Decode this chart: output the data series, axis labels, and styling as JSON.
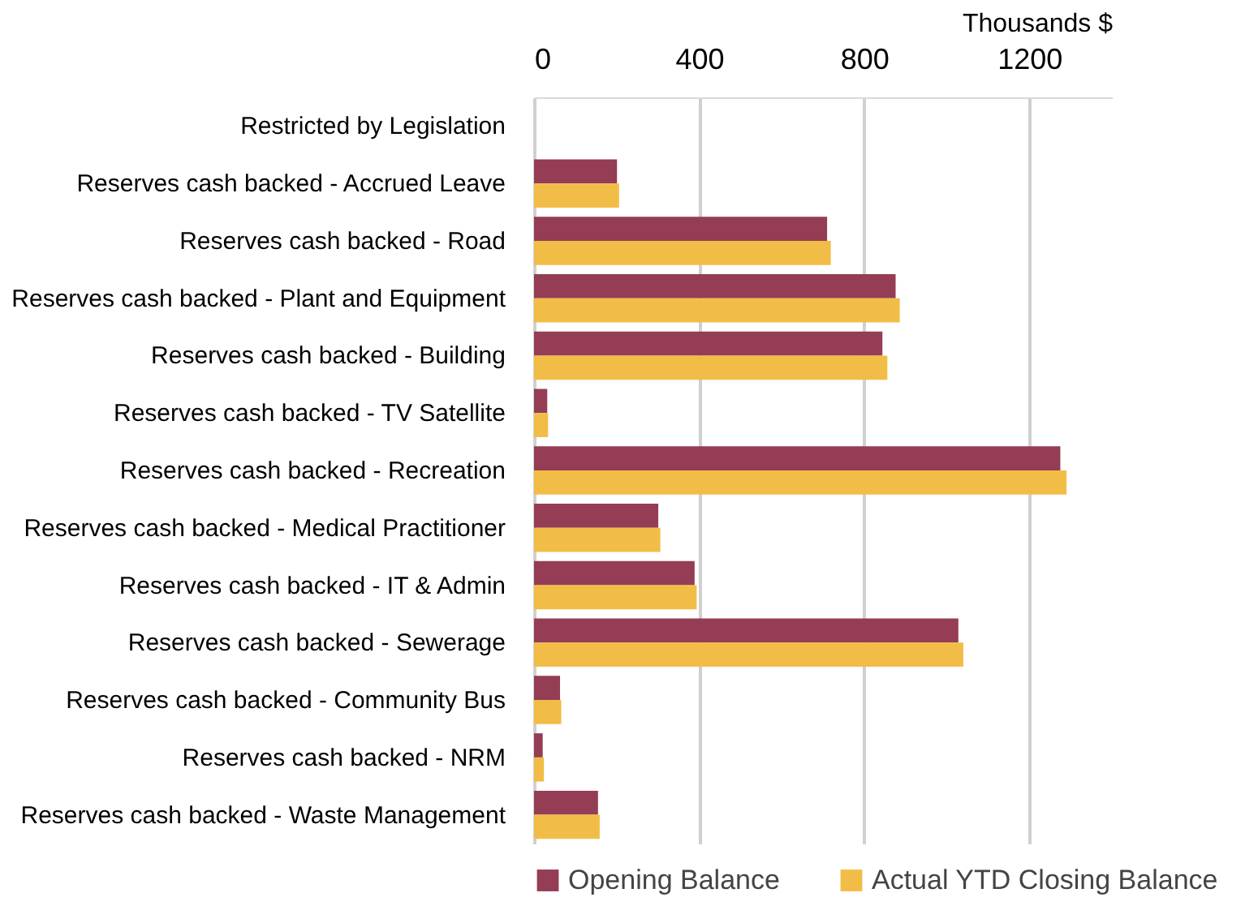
{
  "chart_data": {
    "type": "bar",
    "orientation": "horizontal",
    "xlabel": "Thousands $",
    "categories": [
      "Restricted by Legislation",
      "Reserves cash backed - Accrued Leave",
      "Reserves cash backed - Road",
      "Reserves cash backed - Plant and Equipment",
      "Reserves cash backed - Building",
      "Reserves cash backed - TV Satellite",
      "Reserves cash backed - Recreation",
      "Reserves cash backed - Medical Practitioner",
      "Reserves cash backed - IT & Admin",
      "Reserves cash backed - Sewerage",
      "Reserves cash backed - Community Bus",
      "Reserves cash backed - NRM",
      "Reserves cash backed - Waste Management"
    ],
    "series": [
      {
        "name": "Opening  Balance",
        "color": "#943d54",
        "values": [
          0,
          201,
          710,
          876,
          844,
          32,
          1275,
          301,
          389,
          1028,
          63,
          21,
          155
        ]
      },
      {
        "name": "Actual YTD Closing Balance",
        "color": "#f2bd47",
        "values": [
          0,
          206,
          719,
          886,
          856,
          34,
          1290,
          306,
          394,
          1040,
          66,
          24,
          159
        ]
      }
    ],
    "xlim": [
      0,
      1400
    ],
    "xticks": [
      0,
      400,
      800,
      1200
    ],
    "grid": "x",
    "legend": "bottom"
  }
}
